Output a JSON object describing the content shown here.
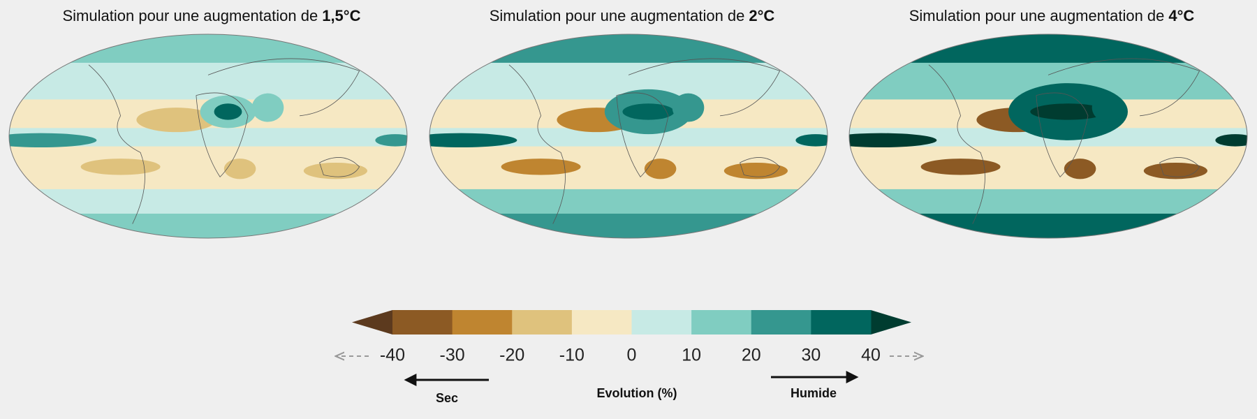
{
  "panels": [
    {
      "title_prefix": "Simulation pour une augmentation de",
      "title_bold": "1,5°C"
    },
    {
      "title_prefix": "Simulation pour une augmentation de",
      "title_bold": "2°C"
    },
    {
      "title_prefix": "Simulation pour une augmentation de",
      "title_bold": "4°C"
    }
  ],
  "colorbar": {
    "lim": [
      -40,
      40
    ],
    "ticks": [
      -40,
      -30,
      -20,
      -10,
      0,
      10,
      20,
      30,
      40
    ],
    "colors": [
      "#8c5a24",
      "#bf8530",
      "#dfc27d",
      "#f6e8c3",
      "#c7eae5",
      "#80cdc1",
      "#35978f",
      "#01665e"
    ],
    "extend_low_color": "#5c3a1e",
    "extend_high_color": "#003c30",
    "label": "Evolution (%)",
    "left_label": "Sec",
    "right_label": "Humide"
  }
}
